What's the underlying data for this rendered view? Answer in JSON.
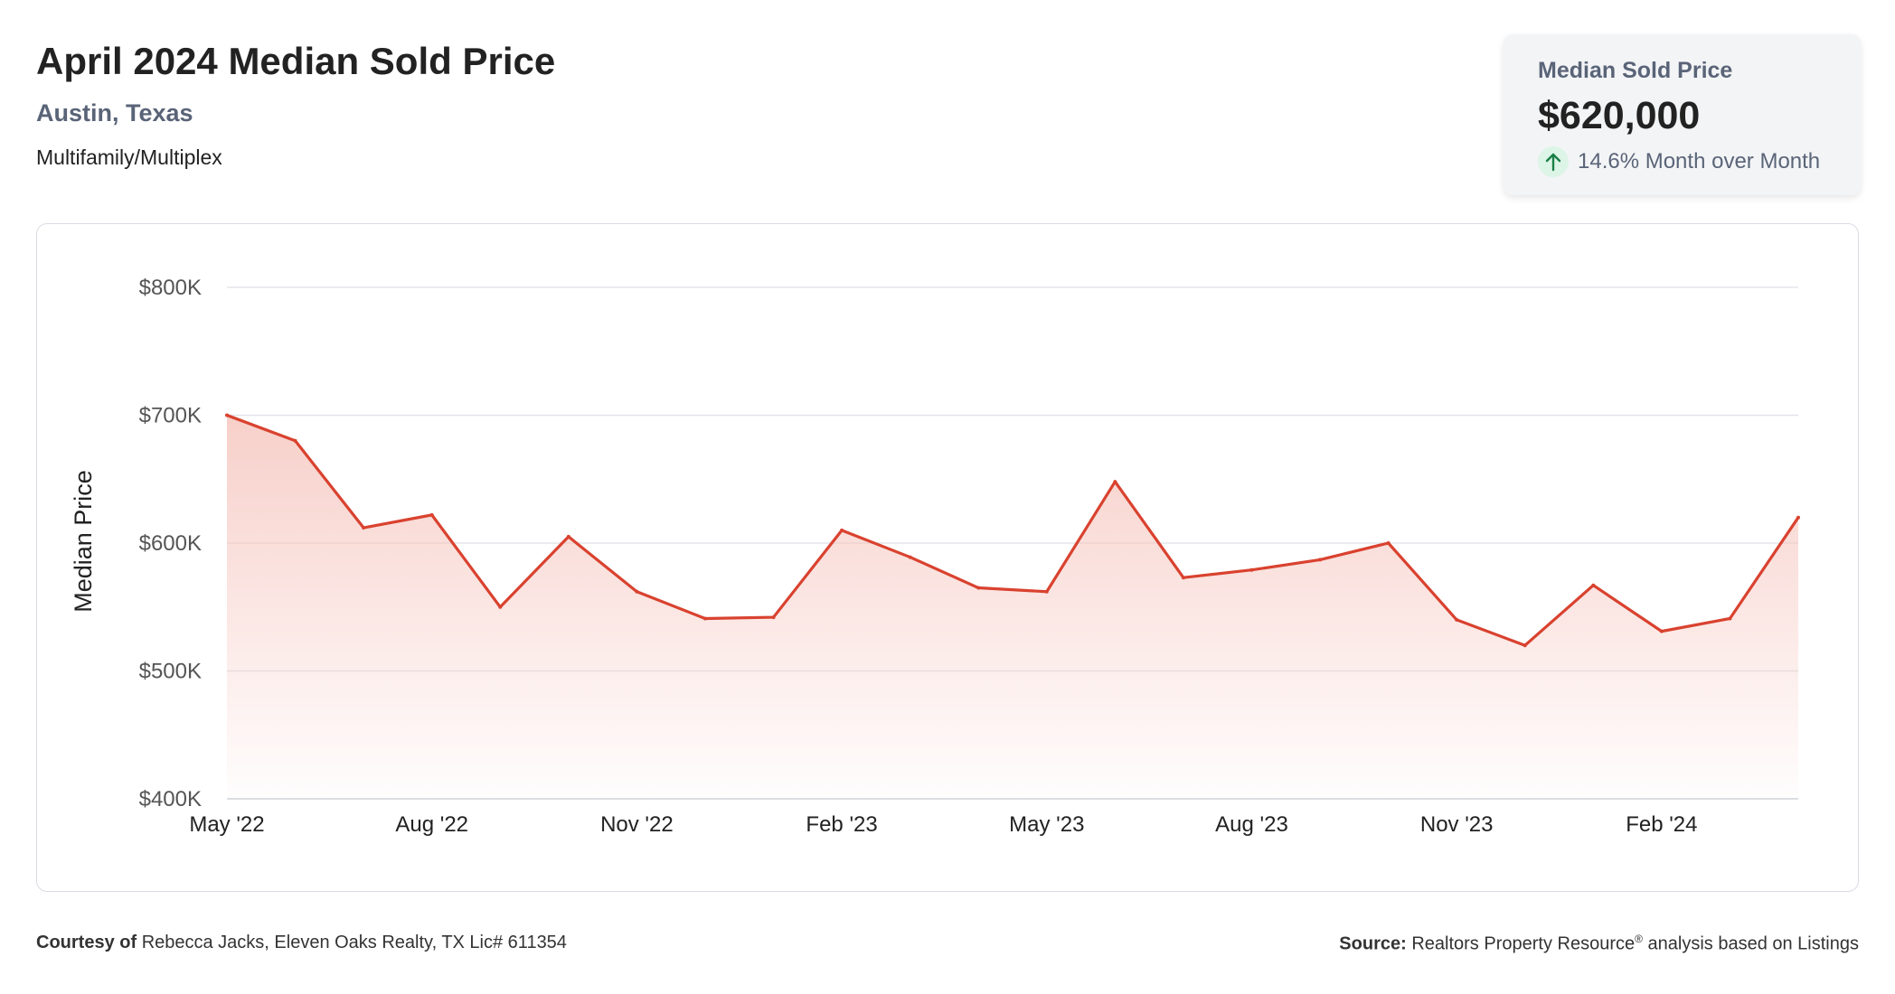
{
  "header": {
    "title": "April 2024 Median Sold Price",
    "location": "Austin, Texas",
    "property_type": "Multifamily/Multiplex"
  },
  "kpi": {
    "label": "Median Sold Price",
    "value": "$620,000",
    "change": "14.6% Month over Month",
    "direction_icon": "arrow-up-icon",
    "change_color": "#1a7f46"
  },
  "chart_data": {
    "type": "area",
    "ylabel": "Median Price",
    "xlabel": "",
    "ylim": [
      400000,
      800000
    ],
    "yticks": [
      400000,
      500000,
      600000,
      700000,
      800000
    ],
    "ytick_labels": [
      "$400K",
      "$500K",
      "$600K",
      "$700K",
      "$800K"
    ],
    "xtick_labels": [
      "May '22",
      "Aug '22",
      "Nov '22",
      "Feb '23",
      "May '23",
      "Aug '23",
      "Nov '23",
      "Feb '24"
    ],
    "xtick_indices": [
      0,
      3,
      6,
      9,
      12,
      15,
      18,
      21
    ],
    "x": [
      "May '22",
      "Jun '22",
      "Jul '22",
      "Aug '22",
      "Sep '22",
      "Oct '22",
      "Nov '22",
      "Dec '22",
      "Jan '23",
      "Feb '23",
      "Mar '23",
      "Apr '23",
      "May '23",
      "Jun '23",
      "Jul '23",
      "Aug '23",
      "Sep '23",
      "Oct '23",
      "Nov '23",
      "Dec '23",
      "Jan '24",
      "Feb '24",
      "Mar '24",
      "Apr '24"
    ],
    "values": [
      700000,
      680000,
      612000,
      622000,
      550000,
      605000,
      562000,
      541000,
      542000,
      610000,
      589000,
      565000,
      562000,
      648000,
      573000,
      579000,
      587000,
      600000,
      540000,
      520000,
      567000,
      531000,
      541000,
      620000
    ],
    "grid": true,
    "line_color": "#d9422f",
    "fill_color": "#f6c7c0"
  },
  "footer": {
    "courtesy_label": "Courtesy of",
    "courtesy_text": "Rebecca Jacks, Eleven Oaks Realty, TX Lic# 611354",
    "source_label": "Source:",
    "source_text": "Realtors Property Resource",
    "source_mark": "®",
    "source_suffix": "analysis based on Listings"
  }
}
